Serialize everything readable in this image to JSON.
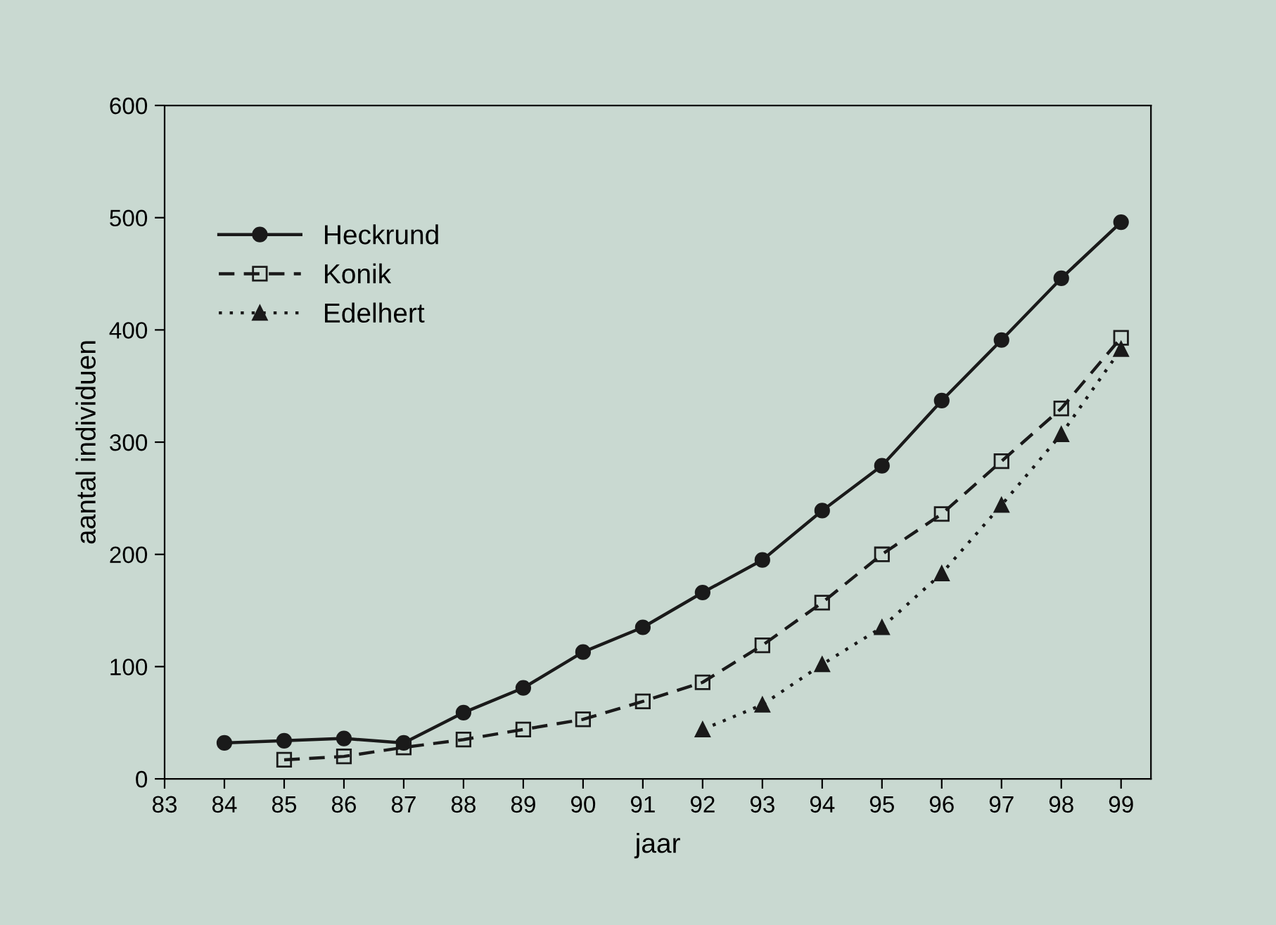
{
  "chart_data": {
    "type": "line",
    "xlabel": "jaar",
    "ylabel": "aantal individuen",
    "xlim": [
      83,
      99.5
    ],
    "xticks": [
      83,
      84,
      85,
      86,
      87,
      88,
      89,
      90,
      91,
      92,
      93,
      94,
      95,
      96,
      97,
      98,
      99
    ],
    "ylim": [
      0,
      600
    ],
    "yticks": [
      0,
      100,
      200,
      300,
      400,
      500,
      600
    ],
    "grid": false,
    "legend": "top left",
    "series": [
      {
        "name": "Heckrund",
        "color": "#1a1a1a",
        "marker": "circle",
        "line_style": "solid",
        "x": [
          84,
          85,
          86,
          87,
          88,
          89,
          90,
          91,
          92,
          93,
          94,
          95,
          96,
          97,
          98,
          99
        ],
        "values": [
          32,
          34,
          36,
          32,
          59,
          81,
          113,
          135,
          166,
          195,
          239,
          279,
          337,
          391,
          446,
          496
        ]
      },
      {
        "name": "Konik",
        "color": "#1a1a1a",
        "marker": "square",
        "line_style": "dashed",
        "x": [
          85,
          86,
          87,
          88,
          89,
          90,
          91,
          92,
          93,
          94,
          95,
          96,
          97,
          98,
          99
        ],
        "values": [
          17,
          20,
          28,
          35,
          44,
          53,
          69,
          86,
          119,
          157,
          200,
          236,
          283,
          330,
          393
        ]
      },
      {
        "name": "Edelhert",
        "color": "#1a1a1a",
        "marker": "triangle",
        "line_style": "dotted",
        "x": [
          92,
          93,
          94,
          95,
          96,
          97,
          98,
          99
        ],
        "values": [
          44,
          66,
          102,
          135,
          183,
          244,
          307,
          383
        ]
      }
    ]
  }
}
